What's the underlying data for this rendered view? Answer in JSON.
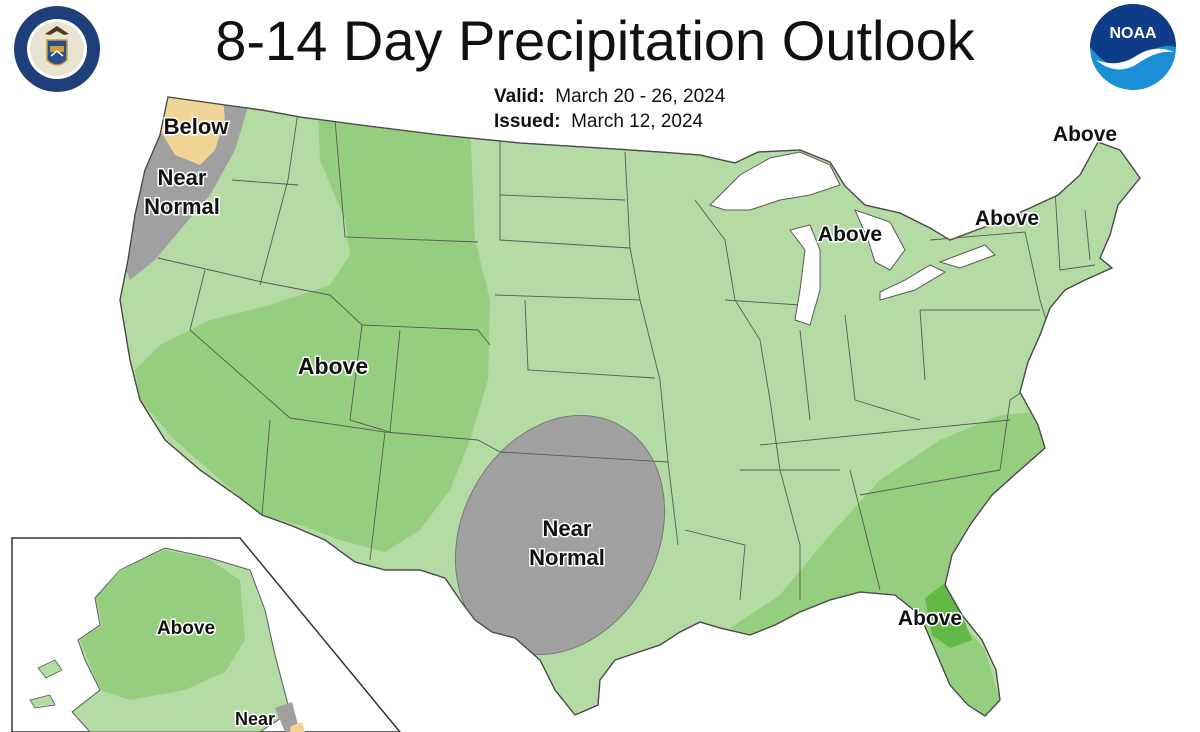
{
  "header": {
    "title": "8-14 Day Precipitation Outlook",
    "valid_label": "Valid:",
    "valid_value": "March 20 - 26, 2024",
    "issued_label": "Issued:",
    "issued_value": "March 12, 2024"
  },
  "logos": {
    "left": {
      "icon": "department-of-commerce-seal",
      "text": "DEPARTMENT OF COMMERCE · UNITED STATES OF AMERICA"
    },
    "right": {
      "icon": "noaa-logo",
      "text": "NOAA"
    }
  },
  "map": {
    "colors": {
      "above_light": "#b3dba3",
      "above_medium": "#94ce7e",
      "above_strong": "#62b948",
      "near_normal": "#a0a0a0",
      "below_light": "#f3d497",
      "water": "#ffffff",
      "border": "#5a5a5a"
    },
    "labels": {
      "below_nw": "Below",
      "near_nw_1": "Near",
      "near_nw_2": "Normal",
      "above_west": "Above",
      "near_sc_1": "Near",
      "near_sc_2": "Normal",
      "above_ne": "Above",
      "above_ny": "Above",
      "above_glakes": "Above",
      "above_se": "Above",
      "above_ak": "Above",
      "near_ak": "Near"
    }
  }
}
